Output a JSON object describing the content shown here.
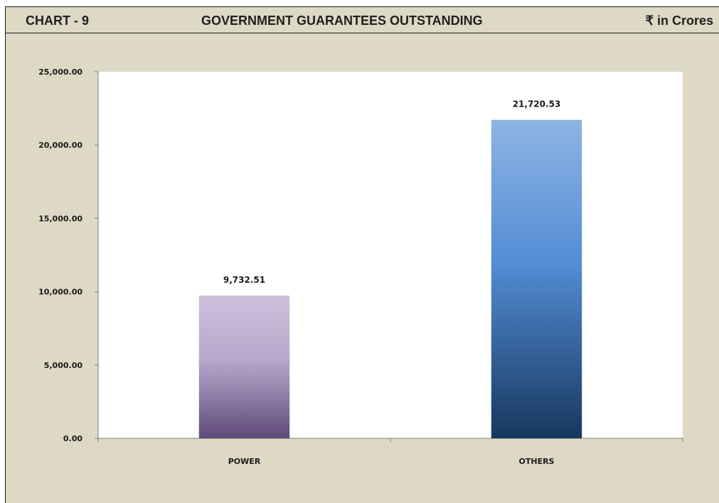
{
  "header": {
    "left": "CHART - 9",
    "center": "GOVERNMENT GUARANTEES OUTSTANDING",
    "right": "₹ in Crores"
  },
  "chart_data": {
    "type": "bar",
    "title": "GOVERNMENT GUARANTEES OUTSTANDING",
    "categories": [
      "POWER",
      "OTHERS"
    ],
    "values": [
      9732.51,
      21720.53
    ],
    "value_labels": [
      "9,732.51",
      "21,720.53"
    ],
    "ylim": [
      0,
      25000
    ],
    "yticks": [
      0,
      5000,
      10000,
      15000,
      20000,
      25000
    ],
    "ytick_labels": [
      "0.00",
      "5,000.00",
      "10,000.00",
      "15,000.00",
      "20,000.00",
      "25,000.00"
    ],
    "xlabel": "",
    "ylabel": "",
    "grid": false,
    "colors": {
      "background": "#ddd9c4",
      "plot_area": "#ffffff",
      "power_top": "#ccc0da",
      "power_bottom": "#5f497a",
      "others_top": "#8db4e2",
      "others_mid": "#538dd5",
      "others_bottom": "#17375e"
    }
  }
}
